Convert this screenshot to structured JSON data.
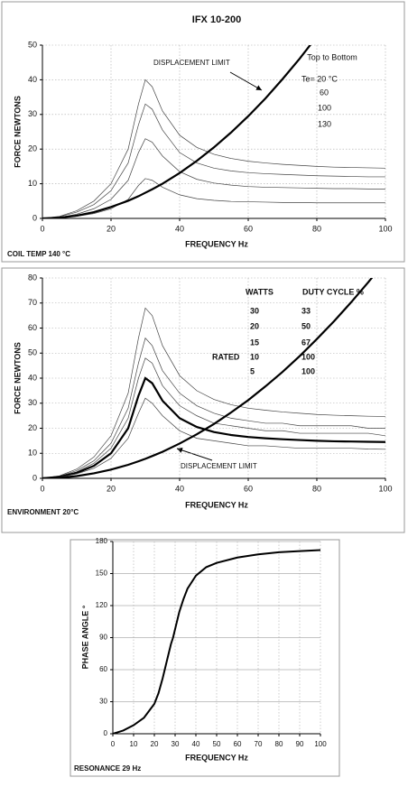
{
  "chart_data": [
    {
      "type": "line",
      "title": "IFX 10-200",
      "xlabel": "FREQUENCY Hz",
      "ylabel": "FORCE  NEWTONS",
      "footnote": "COIL TEMP 140 °C",
      "annotation": "DISPLACEMENT LIMIT",
      "legend_note": {
        "title": "Top to Bottom",
        "items": [
          "Te= 20 °C",
          60,
          100,
          130
        ]
      },
      "xlim": [
        0,
        100
      ],
      "xticks": [
        0,
        20,
        40,
        60,
        80,
        100
      ],
      "ylim": [
        0,
        50
      ],
      "yticks": [
        0,
        10,
        20,
        30,
        40,
        50
      ],
      "grid": true,
      "x": [
        0,
        5,
        10,
        15,
        20,
        25,
        28,
        30,
        32,
        35,
        40,
        45,
        50,
        55,
        60,
        65,
        70,
        75,
        80,
        85,
        90,
        95,
        100
      ],
      "series": [
        {
          "color": "#444444",
          "linewidth": 0.7,
          "values": [
            0,
            0.6,
            2.2,
            5,
            10,
            20,
            33,
            40,
            38,
            31,
            24,
            20.5,
            18.5,
            17.3,
            16.5,
            16,
            15.6,
            15.3,
            15,
            14.8,
            14.7,
            14.6,
            14.5
          ]
        },
        {
          "color": "#444444",
          "linewidth": 0.7,
          "values": [
            0,
            0.5,
            1.8,
            4,
            8,
            16,
            27,
            33,
            31.5,
            25.5,
            19,
            16,
            14.5,
            13.7,
            13.2,
            12.9,
            12.7,
            12.5,
            12.3,
            12.2,
            12.1,
            12,
            12
          ]
        },
        {
          "color": "#444444",
          "linewidth": 0.7,
          "values": [
            0,
            0.3,
            1.2,
            2.8,
            5.5,
            11,
            19,
            23,
            22,
            18,
            13.5,
            11.3,
            10.2,
            9.6,
            9.2,
            9,
            8.9,
            8.8,
            8.7,
            8.6,
            8.6,
            8.5,
            8.5
          ]
        },
        {
          "color": "#444444",
          "linewidth": 0.7,
          "values": [
            0,
            0.2,
            0.6,
            1.4,
            2.8,
            5.5,
            9.5,
            11.5,
            11,
            9,
            6.8,
            5.7,
            5.2,
            4.9,
            4.8,
            4.7,
            4.6,
            4.6,
            4.5,
            4.5,
            4.5,
            4.5,
            4.5
          ]
        },
        {
          "color": "#000000",
          "linewidth": 2.2,
          "values": [
            0,
            0.2,
            0.8,
            1.8,
            3.3,
            5.1,
            6.4,
            7.4,
            8.4,
            10,
            13.1,
            16.6,
            20.5,
            24.8,
            29.5,
            34.6,
            40.2,
            46.1,
            52.5,
            null,
            null,
            null,
            null
          ]
        }
      ]
    },
    {
      "type": "line",
      "xlabel": "FREQUENCY Hz",
      "ylabel": "FORCE  NEWTONS",
      "footnote": "ENVIRONMENT 20°C",
      "annotation": "DISPLACEMENT LIMIT",
      "table": {
        "header": [
          "WATTS",
          "DUTY CYCLE %"
        ],
        "rows": [
          [
            30,
            33
          ],
          [
            20,
            50
          ],
          [
            15,
            67
          ],
          [
            10,
            100
          ],
          [
            5,
            100
          ]
        ],
        "rated_label": "RATED"
      },
      "xlim": [
        0,
        100
      ],
      "xticks": [
        0,
        20,
        40,
        60,
        80,
        100
      ],
      "ylim": [
        0,
        80
      ],
      "yticks": [
        0,
        10,
        20,
        30,
        40,
        50,
        60,
        70,
        80
      ],
      "grid": true,
      "x": [
        0,
        5,
        10,
        15,
        20,
        25,
        28,
        30,
        32,
        35,
        40,
        45,
        50,
        55,
        60,
        65,
        70,
        75,
        80,
        85,
        90,
        95,
        100
      ],
      "series": [
        {
          "color": "#444444",
          "linewidth": 0.7,
          "values": [
            0,
            1,
            3.7,
            8.5,
            17,
            34,
            56,
            68,
            65,
            53,
            41,
            35,
            31.5,
            29.4,
            28,
            27.2,
            26.5,
            26,
            25.5,
            25.2,
            25,
            24.8,
            24.7
          ]
        },
        {
          "color": "#444444",
          "linewidth": 0.7,
          "values": [
            0,
            0.8,
            3.1,
            7,
            14,
            28,
            46,
            56,
            53,
            43,
            34,
            29,
            26,
            24,
            23,
            22,
            22,
            21,
            21,
            21,
            21,
            20,
            20
          ]
        },
        {
          "color": "#444444",
          "linewidth": 0.7,
          "values": [
            0,
            0.7,
            2.6,
            6,
            12,
            24,
            40,
            48,
            46,
            37,
            29,
            25,
            22,
            21,
            20,
            19,
            19,
            18,
            18,
            18,
            18,
            18,
            17
          ]
        },
        {
          "color": "#000000",
          "linewidth": 2.2,
          "values": [
            0,
            0.6,
            2.2,
            5,
            10,
            20,
            33,
            40,
            38,
            31,
            24,
            20.5,
            18.5,
            17.3,
            16.5,
            16,
            15.6,
            15.3,
            15,
            14.8,
            14.7,
            14.6,
            14.5
          ]
        },
        {
          "color": "#444444",
          "linewidth": 0.7,
          "values": [
            0,
            0.5,
            1.8,
            4,
            8,
            16,
            26,
            32,
            30,
            25,
            19,
            16,
            15,
            14,
            13,
            13,
            12.5,
            12,
            12,
            12,
            12,
            11.7,
            11.6
          ]
        },
        {
          "color": "#000000",
          "linewidth": 2.2,
          "values": [
            0,
            0.2,
            0.9,
            2,
            3.5,
            5.4,
            6.8,
            7.8,
            8.9,
            10.6,
            13.9,
            17.6,
            21.7,
            26.3,
            31.2,
            36.7,
            42.5,
            48.8,
            55.6,
            62.7,
            70.3,
            78.3,
            86.8
          ]
        }
      ]
    },
    {
      "type": "line",
      "xlabel": "FREQUENCY Hz",
      "ylabel": "PHASE ANGLE °",
      "footnote": "RESONANCE 29 Hz",
      "xlim": [
        0,
        100
      ],
      "xticks": [
        0,
        10,
        20,
        30,
        40,
        50,
        60,
        70,
        80,
        90,
        100
      ],
      "ylim": [
        0,
        180
      ],
      "yticks": [
        0,
        30,
        60,
        90,
        120,
        150,
        180
      ],
      "grid": true,
      "x": [
        0,
        5,
        10,
        15,
        20,
        22,
        24,
        26,
        28,
        29,
        30,
        32,
        34,
        36,
        40,
        45,
        50,
        60,
        70,
        80,
        90,
        100
      ],
      "series": [
        {
          "color": "#000000",
          "linewidth": 2,
          "values": [
            0,
            3,
            8,
            15,
            28,
            38,
            52,
            68,
            84,
            90,
            98,
            114,
            126,
            136,
            148,
            156,
            160,
            165,
            168,
            170,
            171,
            172
          ]
        }
      ]
    }
  ]
}
